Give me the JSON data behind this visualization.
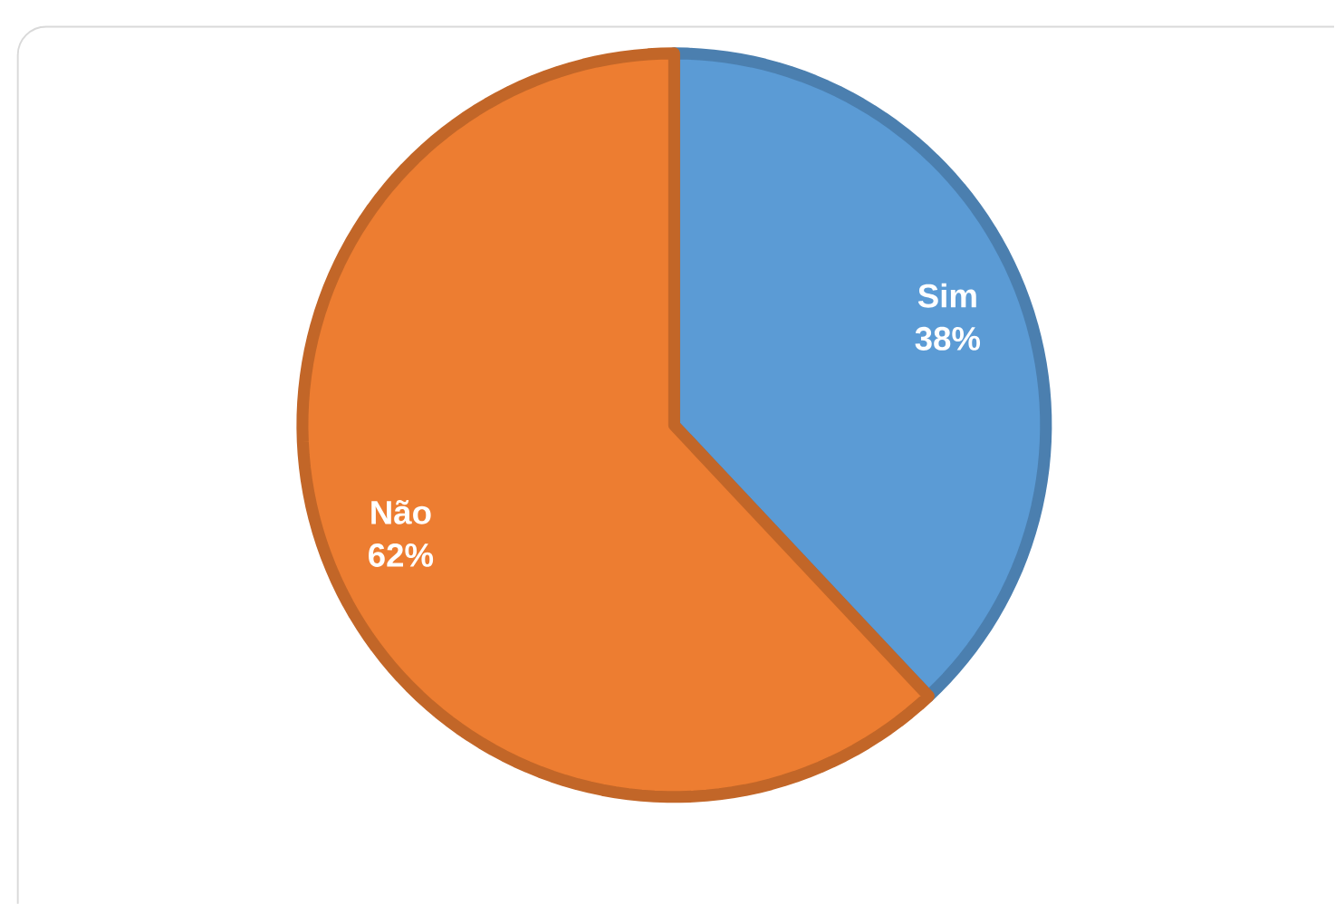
{
  "chart_data": {
    "type": "pie",
    "categories": [
      "Sim",
      "Não"
    ],
    "values": [
      38,
      62
    ],
    "colors": [
      "#5b9bd5",
      "#ed7d31"
    ],
    "value_labels": [
      "38%",
      "62%"
    ]
  }
}
